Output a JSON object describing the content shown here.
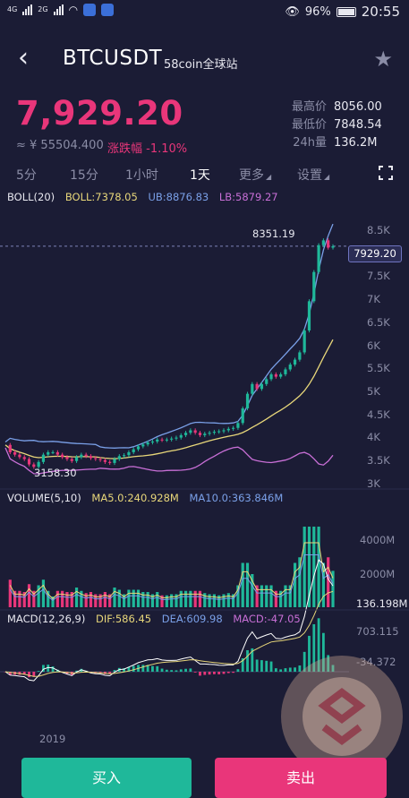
{
  "status_bar": {
    "signal1": "4G",
    "signal2": "2G",
    "battery": "96%",
    "time": "20:55"
  },
  "header": {
    "title": "BTCUSDT",
    "exchange": "58coin全球站"
  },
  "ticker": {
    "last_price": "7,929.20",
    "cny_price": "≈ ¥ 55504.400",
    "change_label": "涨跌幅",
    "change_value": "-1.10%",
    "high_label": "最高价",
    "high_value": "8056.00",
    "low_label": "最低价",
    "low_value": "7848.54",
    "vol_label": "24h量",
    "vol_value": "136.2M"
  },
  "tabs": [
    "5分",
    "15分",
    "1小时",
    "1天",
    "更多",
    "设置"
  ],
  "active_tab": "1天",
  "colors": {
    "up": "#1fb89a",
    "down": "#e9367a",
    "boll": "#e8d77a",
    "ub": "#7aa0e8",
    "lb": "#c86fd6",
    "bg": "#1b1c35"
  },
  "boll": {
    "label": "BOLL(20)",
    "boll": "BOLL:7378.05",
    "ub": "UB:8876.83",
    "lb": "LB:5879.27"
  },
  "price_axis": [
    "8.5K",
    "8K",
    "7.5K",
    "7K",
    "6.5K",
    "6K",
    "5.5K",
    "5K",
    "4.5K",
    "4K",
    "3.5K",
    "3K"
  ],
  "current_price_tag": "7929.20",
  "max_annotation": "8351.19",
  "min_annotation": "3158.30",
  "volume": {
    "label": "VOLUME(5,10)",
    "ma5": "MA5.0:240.928M",
    "ma10": "MA10.0:363.846M",
    "axis": [
      "4000M",
      "2000M"
    ],
    "current": "136.198M"
  },
  "macd": {
    "label": "MACD(12,26,9)",
    "dif": "DIF:586.45",
    "dea": "DEA:609.98",
    "macd": "MACD:-47.05",
    "axis": [
      "703.115",
      "-34.372"
    ]
  },
  "x_axis_label": "2019",
  "buy_label": "买入",
  "sell_label": "卖出",
  "chart_data": {
    "type": "candlestick",
    "x": [
      "2019"
    ],
    "ylim": [
      3000,
      8700
    ],
    "close": [
      3850,
      3700,
      3650,
      3600,
      3560,
      3450,
      3400,
      3500,
      3650,
      3700,
      3700,
      3650,
      3600,
      3560,
      3520,
      3600,
      3650,
      3620,
      3580,
      3560,
      3540,
      3500,
      3480,
      3560,
      3620,
      3640,
      3700,
      3760,
      3820,
      3860,
      3900,
      3920,
      3960,
      3950,
      3960,
      3980,
      4000,
      4050,
      4100,
      4150,
      4100,
      4050,
      4080,
      4100,
      4120,
      4130,
      4150,
      4180,
      4200,
      4300,
      4600,
      4900,
      5100,
      5000,
      5100,
      5200,
      5300,
      5250,
      5300,
      5400,
      5500,
      5600,
      5750,
      6200,
      6800,
      7400,
      7950,
      8050,
      7900,
      7929
    ],
    "boll_mid_last": 7378.05,
    "boll_ub_last": 8876.83,
    "boll_lb_last": 5879.27
  }
}
